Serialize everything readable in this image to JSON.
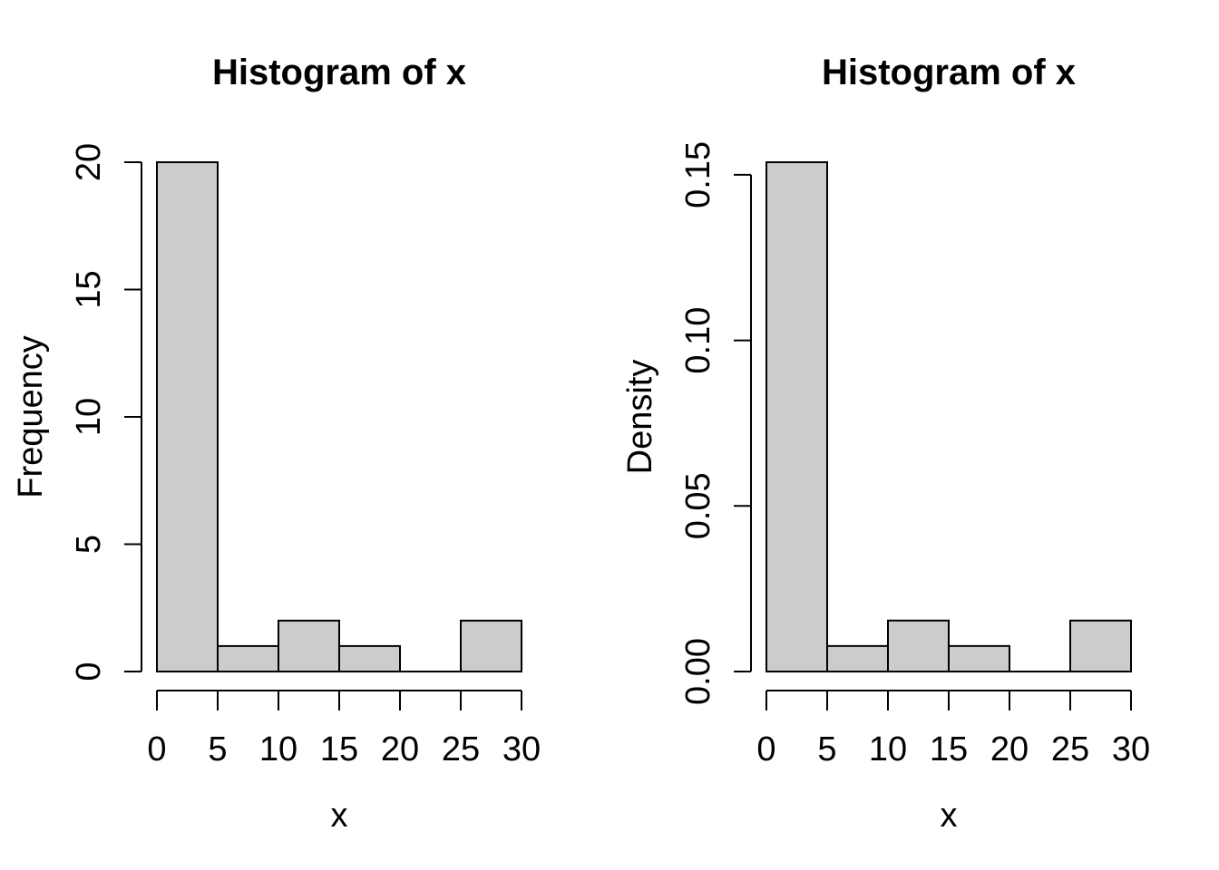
{
  "figure": {
    "background": "#ffffff",
    "foreground": "#000000"
  },
  "chart_data": [
    {
      "type": "bar",
      "subtype": "histogram",
      "title": "Histogram of x",
      "xlabel": "x",
      "ylabel": "Frequency",
      "bin_breaks": [
        0,
        5,
        10,
        15,
        20,
        25,
        30
      ],
      "values": [
        20,
        1,
        2,
        1,
        0,
        2
      ],
      "xlim": [
        0,
        30
      ],
      "ylim": [
        0,
        20
      ],
      "xticks": [
        0,
        5,
        10,
        15,
        20,
        25,
        30
      ],
      "xtick_labels": [
        "0",
        "5",
        "10",
        "15",
        "20",
        "25",
        "30"
      ],
      "yticks": [
        0,
        5,
        10,
        15,
        20
      ],
      "ytick_labels": [
        "0",
        "5",
        "10",
        "15",
        "20"
      ],
      "grid": false,
      "legend": "none",
      "bar_fill": "#cccccc",
      "bar_stroke": "#000000",
      "axis_color": "#000000"
    },
    {
      "type": "bar",
      "subtype": "histogram",
      "title": "Histogram of x",
      "xlabel": "x",
      "ylabel": "Density",
      "bin_breaks": [
        0,
        5,
        10,
        15,
        20,
        25,
        30
      ],
      "values": [
        0.1538,
        0.0077,
        0.0154,
        0.0077,
        0,
        0.0154
      ],
      "xlim": [
        0,
        30
      ],
      "ylim": [
        0,
        0.1538
      ],
      "xticks": [
        0,
        5,
        10,
        15,
        20,
        25,
        30
      ],
      "xtick_labels": [
        "0",
        "5",
        "10",
        "15",
        "20",
        "25",
        "30"
      ],
      "yticks": [
        0,
        0.05,
        0.1,
        0.15
      ],
      "ytick_labels": [
        "0.00",
        "0.05",
        "0.10",
        "0.15"
      ],
      "grid": false,
      "legend": "none",
      "bar_fill": "#cccccc",
      "bar_stroke": "#000000",
      "axis_color": "#000000"
    }
  ]
}
